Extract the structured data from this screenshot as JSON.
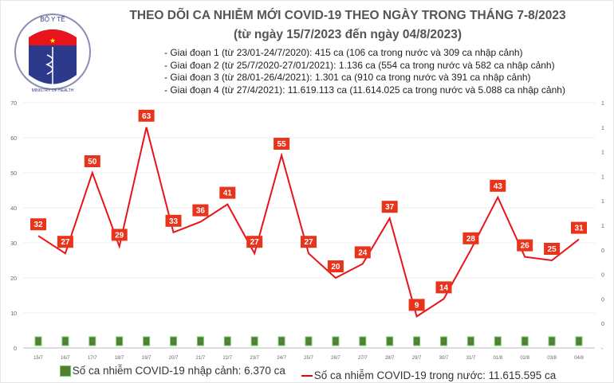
{
  "logo": {
    "text_top": "BỘ Y TẾ",
    "text_bottom": "MINISTRY OF HEALTH"
  },
  "chart_data": {
    "type": "line",
    "title": "THEO DÕI CA NHIỄM MỚI COVID-19 THEO NGÀY TRONG THÁNG 7-8/2023",
    "subtitle": "(từ ngày 15/7/2023 đến ngày 04/8/2023)",
    "notes": [
      "- Giai đoạn 1 (từ 23/01-24/7/2020): 415 ca (106 ca trong nước và 309 ca nhập cảnh)",
      "- Giai đoạn 2 (từ 25/7/2020-27/01/2021): 1.136 ca (554 ca trong nước và 582 ca nhập cảnh)",
      "- Giai đoạn 3 (từ 28/01-26/4/2021): 1.301 ca (910 ca trong nước và 391 ca nhập cảnh)",
      "- Giai đoạn 4 (từ 27/4/2021): 11.619.113 ca (11.614.025 ca trong nước và 5.088 ca nhập cảnh)"
    ],
    "categories": [
      "15/7",
      "16/7",
      "17/7",
      "18/7",
      "19/7",
      "20/7",
      "21/7",
      "22/7",
      "23/7",
      "24/7",
      "25/7",
      "26/7",
      "27/7",
      "28/7",
      "29/7",
      "30/7",
      "31/7",
      "01/8",
      "02/8",
      "03/8",
      "04/8"
    ],
    "series": [
      {
        "name": "Số ca nhiễm COVID-19 nhập cảnh: 6.370 ca",
        "type": "bar",
        "color": "#4f7f2f",
        "values": [
          0,
          0,
          0,
          0,
          0,
          0,
          0,
          0,
          0,
          0,
          0,
          0,
          0,
          0,
          0,
          0,
          0,
          0,
          0,
          0,
          0
        ],
        "labels": [
          "-",
          "-",
          "-",
          "-",
          "-",
          "-",
          "-",
          "-",
          "-",
          "-",
          "-",
          "-",
          "-",
          "-",
          "-",
          "-",
          "-",
          "-",
          "-",
          "-",
          "-"
        ]
      },
      {
        "name": "Số ca nhiễm COVID-19 trong nước: 11.615.595 ca",
        "type": "line",
        "color": "#e8141b",
        "values": [
          32,
          27,
          50,
          29,
          63,
          33,
          36,
          41,
          27,
          55,
          27,
          20,
          24,
          37,
          9,
          14,
          28,
          43,
          26,
          25,
          31
        ]
      }
    ],
    "left_axis": {
      "ylim": [
        0,
        70
      ],
      "ticks": [
        "0",
        "10",
        "20",
        "30",
        "40",
        "50",
        "60",
        "70"
      ]
    },
    "right_axis": {
      "ticks": [
        "-",
        "0",
        "0",
        "0",
        "0",
        "1",
        "1",
        "1",
        "1",
        "1",
        "1"
      ]
    },
    "grid": true,
    "legend_position": "bottom"
  }
}
